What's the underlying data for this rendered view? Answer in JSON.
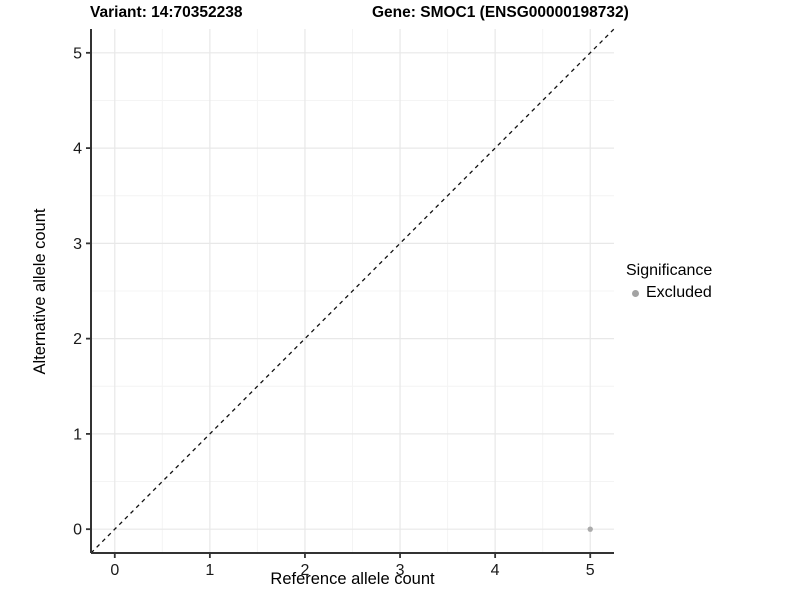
{
  "chart_data": {
    "type": "scatter",
    "title_left": "Variant: 14:70352238",
    "title_right": "Gene: SMOC1 (ENSG00000198732)",
    "xlabel": "Reference allele count",
    "ylabel": "Alternative allele count",
    "xlim": [
      -0.25,
      5.25
    ],
    "ylim": [
      -0.25,
      5.25
    ],
    "x_ticks": [
      0,
      1,
      2,
      3,
      4,
      5
    ],
    "y_ticks": [
      0,
      1,
      2,
      3,
      4,
      5
    ],
    "x_minor_ticks": [
      0.5,
      1.5,
      2.5,
      3.5,
      4.5
    ],
    "y_minor_ticks": [
      0.5,
      1.5,
      2.5,
      3.5,
      4.5
    ],
    "grid": true,
    "series": [
      {
        "name": "Excluded",
        "marker": "circle",
        "color": "#ababab",
        "points": [
          {
            "x": 5,
            "y": 0
          }
        ]
      }
    ],
    "reference_line": {
      "kind": "identity-diagonal",
      "style": "dashed",
      "from": [
        -0.25,
        -0.25
      ],
      "to": [
        5.25,
        5.25
      ],
      "color": "#111111"
    },
    "legend": {
      "title": "Significance",
      "position": "right",
      "items": [
        {
          "label": "Excluded",
          "color": "#a3a3a3",
          "marker": "circle"
        }
      ]
    }
  },
  "colors": {
    "background": "#ffffff",
    "grid_major": "#e8e8e8",
    "grid_minor": "#f4f4f4",
    "axis_line": "#333333",
    "tick_mark": "#333333",
    "tick_label": "#1a1a1a",
    "point": "#ababab"
  }
}
